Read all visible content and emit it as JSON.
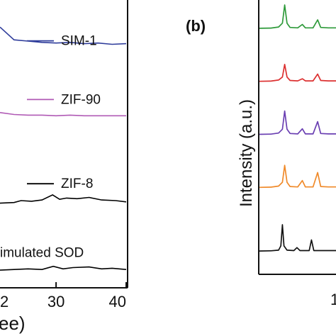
{
  "chart_data": [
    {
      "type": "line",
      "panel": "a",
      "xlabel": "ee)",
      "ylabel": "",
      "xlim": [
        22,
        40
      ],
      "xticks": [
        30,
        40
      ],
      "xtick_labels": [
        "30",
        "40"
      ],
      "partial_tick_label": "2",
      "series": [
        {
          "name": "SIM-1",
          "color": "#2f3d9b",
          "baseline": 0.93,
          "legend_y": 0.99,
          "x": [
            22,
            24,
            26,
            28,
            30,
            32,
            34,
            36,
            38,
            40
          ],
          "y": [
            0.3,
            0.1,
            0.08,
            0.06,
            0.05,
            0.06,
            0.04,
            0.05,
            0.03,
            0.04
          ]
        },
        {
          "name": "ZIF-90",
          "color": "#b05ab5",
          "baseline": 0.65,
          "legend_y": 0.76,
          "x": [
            22,
            24,
            26,
            28,
            30,
            32,
            34,
            36,
            38,
            40
          ],
          "y": [
            0.08,
            0.05,
            0.04,
            0.04,
            0.03,
            0.04,
            0.03,
            0.03,
            0.03,
            0.03
          ]
        },
        {
          "name": "ZIF-8",
          "color": "#000000",
          "baseline": 0.31,
          "legend_y": 0.43,
          "x": [
            22,
            24,
            25,
            26.5,
            28,
            29.5,
            30.5,
            31.5,
            33,
            34.7,
            36.5,
            38.5,
            40
          ],
          "y": [
            0.02,
            0.03,
            0.06,
            0.05,
            0.07,
            0.15,
            0.08,
            0.1,
            0.09,
            0.11,
            0.07,
            0.06,
            0.04
          ]
        },
        {
          "name": "imulated SOD",
          "color": "#000000",
          "baseline": 0.05,
          "legend_y": 0.16,
          "x": [
            22,
            24,
            26,
            28,
            29.6,
            31,
            32.4,
            34.7,
            36.5,
            38,
            40
          ],
          "y": [
            0.01,
            0.02,
            0.03,
            0.02,
            0.07,
            0.03,
            0.05,
            0.06,
            0.03,
            0.04,
            0.02
          ]
        }
      ]
    },
    {
      "type": "line",
      "panel": "b",
      "panel_label": "(b)",
      "ylabel": "Intensity (a.u.)",
      "xlabel": "",
      "partial_tick_label": "1",
      "xlim": [
        0,
        10
      ],
      "series": [
        {
          "name": "",
          "color": "#2e9a3a",
          "baseline": 0.92,
          "x": [
            0,
            1.5,
            2.5,
            3,
            3.3,
            3.6,
            4,
            5,
            5.6,
            6,
            7,
            7.6,
            8,
            9,
            10
          ],
          "y": [
            0.0,
            0.005,
            0.03,
            0.12,
            0.55,
            0.12,
            0.02,
            0.01,
            0.09,
            0.01,
            0.01,
            0.2,
            0.02,
            0.01,
            0.01
          ]
        },
        {
          "name": "",
          "color": "#dc3030",
          "baseline": 0.72,
          "x": [
            0,
            1.5,
            2.5,
            3,
            3.3,
            3.6,
            4,
            5,
            5.6,
            6,
            7,
            7.6,
            8,
            9,
            10
          ],
          "y": [
            0.0,
            0.005,
            0.03,
            0.1,
            0.4,
            0.1,
            0.02,
            0.01,
            0.06,
            0.01,
            0.01,
            0.17,
            0.02,
            0.01,
            0.01
          ]
        },
        {
          "name": "",
          "color": "#6a3fb2",
          "baseline": 0.52,
          "x": [
            0,
            1.5,
            2.5,
            3,
            3.3,
            3.6,
            4,
            5,
            5.6,
            6,
            7,
            7.6,
            8,
            9,
            10
          ],
          "y": [
            0.0,
            0.005,
            0.03,
            0.12,
            0.55,
            0.12,
            0.02,
            0.01,
            0.13,
            0.01,
            0.01,
            0.3,
            0.02,
            0.01,
            0.01
          ]
        },
        {
          "name": "",
          "color": "#f08a2a",
          "baseline": 0.32,
          "x": [
            0,
            1.5,
            2.5,
            3,
            3.3,
            3.6,
            4,
            5,
            5.6,
            6,
            7,
            7.6,
            8,
            9,
            10
          ],
          "y": [
            0.0,
            0.005,
            0.03,
            0.12,
            0.52,
            0.12,
            0.02,
            0.01,
            0.16,
            0.01,
            0.01,
            0.35,
            0.02,
            0.01,
            0.01
          ]
        },
        {
          "name": "",
          "color": "#111111",
          "baseline": 0.08,
          "x": [
            0,
            1.5,
            2.5,
            2.8,
            3.0,
            3.2,
            3.6,
            4.5,
            4.9,
            5.3,
            6.5,
            6.8,
            7.1,
            8,
            9,
            10
          ],
          "y": [
            0.0,
            0.005,
            0.02,
            0.12,
            0.62,
            0.12,
            0.02,
            0.01,
            0.08,
            0.01,
            0.01,
            0.26,
            0.01,
            0.01,
            0.01,
            0.01
          ]
        }
      ]
    }
  ]
}
